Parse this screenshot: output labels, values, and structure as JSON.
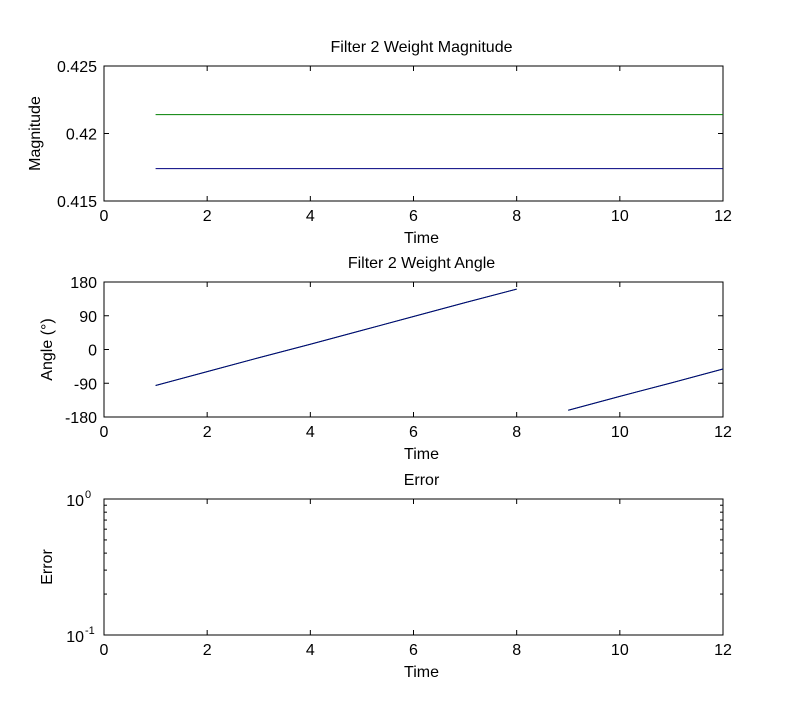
{
  "chart_data": [
    {
      "type": "line",
      "title": "Filter 2 Weight Magnitude",
      "xlabel": "Time",
      "ylabel": "Magnitude",
      "xlim": [
        0,
        12
      ],
      "ylim": [
        0.415,
        0.425
      ],
      "xticks": [
        0,
        2,
        4,
        6,
        8,
        10,
        12
      ],
      "yticks": [
        0.415,
        0.42,
        0.425
      ],
      "xtick_labels": [
        "0",
        "2",
        "4",
        "6",
        "8",
        "10",
        "12"
      ],
      "ytick_labels": [
        "0.415",
        "0.42",
        "0.425"
      ],
      "series": [
        {
          "x": [
            1,
            12
          ],
          "y": [
            0.4214,
            0.4214
          ],
          "color": "#007f00"
        },
        {
          "x": [
            1,
            12
          ],
          "y": [
            0.4174,
            0.4174
          ],
          "color": "#00007f"
        }
      ]
    },
    {
      "type": "line",
      "title": "Filter 2 Weight Angle",
      "xlabel": "Time",
      "ylabel": "Angle (°)",
      "xlim": [
        0,
        12
      ],
      "ylim": [
        -180,
        180
      ],
      "xticks": [
        0,
        2,
        4,
        6,
        8,
        10,
        12
      ],
      "yticks": [
        -180,
        -90,
        0,
        90,
        180
      ],
      "xtick_labels": [
        "0",
        "2",
        "4",
        "6",
        "8",
        "10",
        "12"
      ],
      "ytick_labels": [
        "-180",
        "-90",
        "0",
        "90",
        "180"
      ],
      "series": [
        {
          "x": [
            1,
            2,
            3,
            4,
            5,
            6,
            7,
            8,
            9,
            10,
            11,
            12
          ],
          "y": [
            -96,
            -59,
            -22,
            14,
            51,
            88,
            125,
            161,
            -162,
            -125,
            -89,
            -52
          ],
          "color": "#007f00"
        },
        {
          "x": [
            1,
            2,
            3,
            4,
            5,
            6,
            7,
            8,
            9,
            10,
            11,
            12
          ],
          "y": [
            -96,
            -59,
            -22,
            14,
            51,
            88,
            125,
            161,
            -162,
            -125,
            -89,
            -52
          ],
          "color": "#00007f"
        }
      ]
    },
    {
      "type": "line",
      "title": "Error",
      "xlabel": "Time",
      "ylabel": "Error",
      "xlim": [
        0,
        12
      ],
      "ylim": [
        0.1,
        1
      ],
      "yscale": "log",
      "xticks": [
        0,
        2,
        4,
        6,
        8,
        10,
        12
      ],
      "xtick_labels": [
        "0",
        "2",
        "4",
        "6",
        "8",
        "10",
        "12"
      ],
      "ytick_labels": [
        {
          "base": "10",
          "exp": "0"
        },
        {
          "base": "10",
          "exp": "-1"
        }
      ],
      "series": []
    }
  ]
}
